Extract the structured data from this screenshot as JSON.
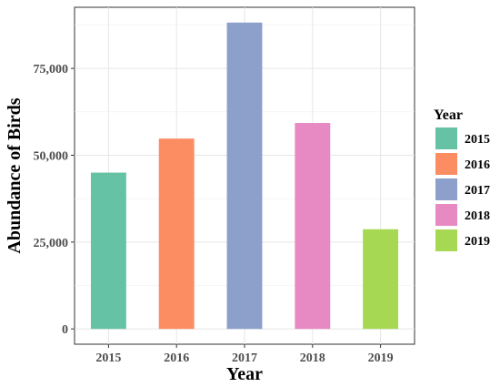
{
  "chart_data": {
    "type": "bar",
    "categories": [
      "2015",
      "2016",
      "2017",
      "2018",
      "2019"
    ],
    "values": [
      45000,
      54800,
      88200,
      59300,
      28700
    ],
    "colors": [
      "#66c2a5",
      "#fc8d62",
      "#8da0cb",
      "#e78ac3",
      "#a6d854"
    ],
    "xlabel": "Year",
    "ylabel": "Abundance of Birds",
    "ylim": [
      -4400,
      92600
    ],
    "yticks": [
      0,
      25000,
      50000,
      75000
    ],
    "ytick_labels": [
      "0",
      "25,000",
      "50,000",
      "75,000"
    ],
    "grid": true,
    "legend": {
      "title": "Year",
      "position": "right",
      "entries": [
        "2015",
        "2016",
        "2017",
        "2018",
        "2019"
      ]
    }
  }
}
